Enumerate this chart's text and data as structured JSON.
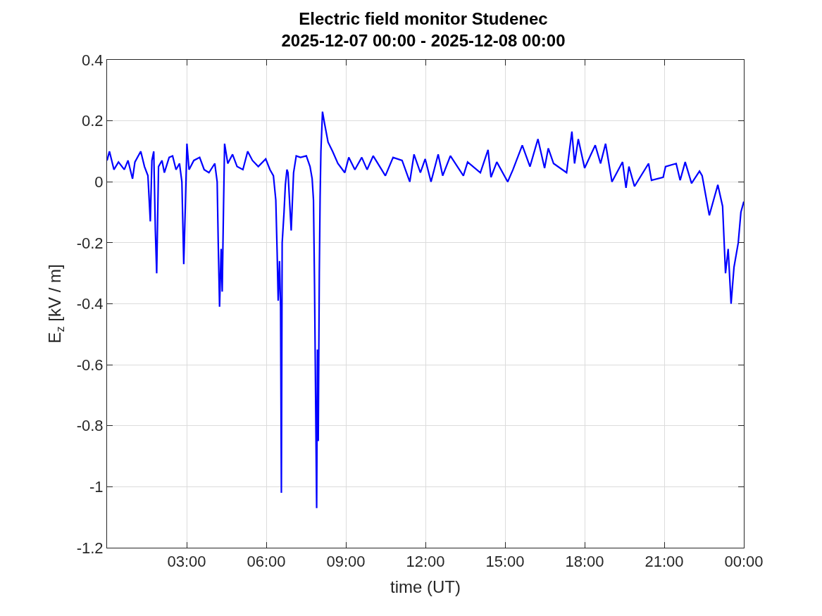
{
  "chart_data": {
    "type": "line",
    "title": "Electric field monitor Studenec\n2025-12-07 00:00 - 2025-12-08 00:00",
    "xlabel": "time (UT)",
    "ylabel": "E$_{z}$ [kV / m]",
    "series": [
      {
        "color": "#0000ff",
        "x": [
          0,
          0.09,
          0.26,
          0.43,
          0.65,
          0.79,
          0.96,
          1.05,
          1.27,
          1.41,
          1.54,
          1.63,
          1.69,
          1.76,
          1.82,
          1.87,
          1.94,
          2.07,
          2.16,
          2.34,
          2.47,
          2.6,
          2.73,
          2.82,
          2.89,
          2.95,
          3.01,
          3.09,
          3.27,
          3.49,
          3.66,
          3.84,
          4.06,
          4.15,
          4.19,
          4.24,
          4.3,
          4.34,
          4.39,
          4.43,
          4.55,
          4.73,
          4.9,
          5.12,
          5.3,
          5.48,
          5.7,
          5.98,
          6.14,
          6.27,
          6.36,
          6.41,
          6.45,
          6.5,
          6.54,
          6.57,
          6.6,
          6.67,
          6.72,
          6.78,
          6.82,
          6.94,
          7.03,
          7.13,
          7.29,
          7.51,
          7.65,
          7.73,
          7.78,
          7.82,
          7.9,
          7.93,
          7.96,
          8.0,
          8.03,
          8.06,
          8.12,
          8.2,
          8.33,
          8.5,
          8.7,
          8.96,
          9.11,
          9.34,
          9.6,
          9.8,
          10.03,
          10.49,
          10.78,
          11.12,
          11.41,
          11.57,
          11.81,
          11.99,
          12.21,
          12.48,
          12.65,
          12.94,
          13.43,
          13.59,
          14.07,
          14.36,
          14.47,
          14.69,
          15.1,
          15.3,
          15.65,
          15.94,
          16.24,
          16.49,
          16.63,
          16.83,
          17.32,
          17.52,
          17.62,
          17.76,
          18.0,
          18.4,
          18.6,
          18.79,
          19.03,
          19.43,
          19.56,
          19.67,
          19.88,
          20.41,
          20.52,
          20.96,
          21.05,
          21.45,
          21.6,
          21.79,
          22.03,
          22.33,
          22.43,
          22.7,
          23.02,
          23.2,
          23.31,
          23.41,
          23.52,
          23.63,
          23.79,
          23.89,
          24.0
        ],
        "values": [
          0.07,
          0.1,
          0.04,
          0.065,
          0.04,
          0.07,
          0.01,
          0.065,
          0.1,
          0.05,
          0.02,
          -0.13,
          0.07,
          0.1,
          -0.16,
          -0.3,
          0.05,
          0.07,
          0.03,
          0.08,
          0.085,
          0.04,
          0.06,
          0.0,
          -0.27,
          -0.08,
          0.125,
          0.04,
          0.07,
          0.08,
          0.04,
          0.03,
          0.06,
          0.0,
          -0.2,
          -0.41,
          -0.22,
          -0.36,
          -0.08,
          0.125,
          0.06,
          0.09,
          0.05,
          0.04,
          0.1,
          0.07,
          0.05,
          0.075,
          0.04,
          0.02,
          -0.06,
          -0.23,
          -0.39,
          -0.26,
          -0.41,
          -1.02,
          -0.2,
          -0.1,
          -0.01,
          0.04,
          0.03,
          -0.16,
          0.03,
          0.085,
          0.08,
          0.085,
          0.05,
          0.01,
          -0.06,
          -0.34,
          -1.07,
          -0.55,
          -0.85,
          -0.3,
          -0.05,
          0.1,
          0.23,
          0.19,
          0.13,
          0.1,
          0.06,
          0.03,
          0.08,
          0.04,
          0.08,
          0.04,
          0.085,
          0.02,
          0.08,
          0.07,
          0.0,
          0.09,
          0.03,
          0.075,
          0.0,
          0.09,
          0.02,
          0.085,
          0.02,
          0.065,
          0.03,
          0.105,
          0.015,
          0.065,
          0.0,
          0.04,
          0.12,
          0.05,
          0.14,
          0.045,
          0.11,
          0.06,
          0.03,
          0.165,
          0.06,
          0.14,
          0.045,
          0.12,
          0.06,
          0.125,
          0.0,
          0.065,
          -0.02,
          0.05,
          -0.015,
          0.06,
          0.005,
          0.015,
          0.05,
          0.06,
          0.005,
          0.065,
          -0.005,
          0.035,
          0.02,
          -0.11,
          -0.01,
          -0.08,
          -0.3,
          -0.22,
          -0.4,
          -0.28,
          -0.2,
          -0.1,
          -0.065
        ]
      }
    ],
    "xlim": [
      0,
      24
    ],
    "xticks": [
      {
        "value": 3,
        "label": "03:00"
      },
      {
        "value": 6,
        "label": "06:00"
      },
      {
        "value": 9,
        "label": "09:00"
      },
      {
        "value": 12,
        "label": "12:00"
      },
      {
        "value": 15,
        "label": "15:00"
      },
      {
        "value": 18,
        "label": "18:00"
      },
      {
        "value": 21,
        "label": "21:00"
      },
      {
        "value": 24,
        "label": "00:00"
      }
    ],
    "ylim": [
      -1.2,
      0.4
    ],
    "yticks": [
      -1.2,
      -1,
      -0.8,
      -0.6,
      -0.4,
      -0.2,
      0,
      0.2,
      0.4
    ],
    "grid": true,
    "marker": "none",
    "line_style": "solid"
  }
}
